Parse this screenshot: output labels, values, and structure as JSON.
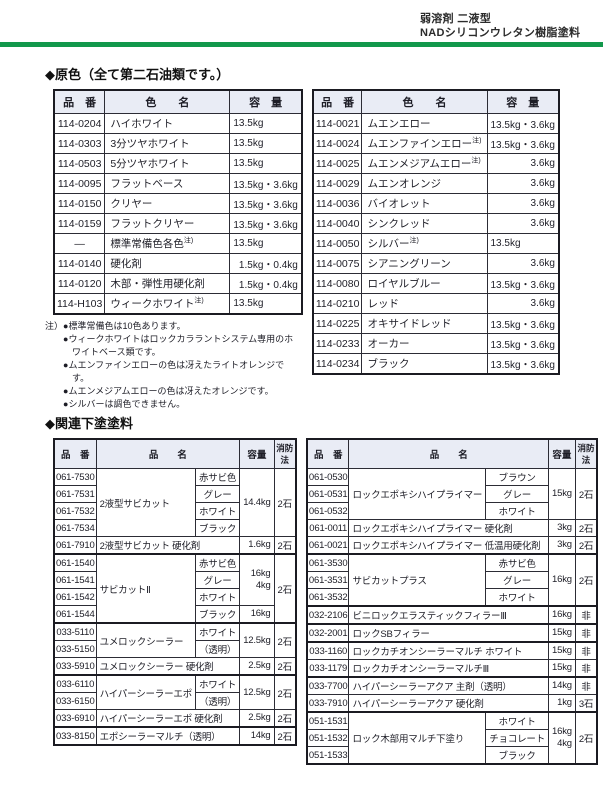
{
  "colors": {
    "accent_green": "#12984b",
    "table_border": "#2c2c35",
    "header_bg": "#e9ecf5"
  },
  "header": {
    "line1": "弱溶剤 二液型",
    "line2": "NADシリコンウレタン樹脂塗料"
  },
  "section1": {
    "title": "◆原色（全て第二石油類です。）",
    "columns": [
      "品　番",
      "色　　名",
      "容　量"
    ],
    "note_mark": "注)",
    "left_rows": [
      {
        "code": "114-0204",
        "name": "ハイホワイト",
        "qty": "13.5kg"
      },
      {
        "code": "114-0303",
        "name": "3分ツヤホワイト",
        "qty": "13.5kg"
      },
      {
        "code": "114-0503",
        "name": "5分ツヤホワイト",
        "qty": "13.5kg"
      },
      {
        "code": "114-0095",
        "name": "フラットベース",
        "qty": "13.5kg・3.6kg"
      },
      {
        "code": "114-0150",
        "name": "クリヤー",
        "qty": "13.5kg・3.6kg"
      },
      {
        "code": "114-0159",
        "name": "フラットクリヤー",
        "qty": "13.5kg・3.6kg"
      },
      {
        "code": "—",
        "name": "標準常備色各色",
        "note": true,
        "qty": "13.5kg"
      },
      {
        "code": "114-0140",
        "name": "硬化剤",
        "qty": "1.5kg・0.4kg"
      },
      {
        "code": "114-0120",
        "name": "木部・弾性用硬化剤",
        "qty": "1.5kg・0.4kg"
      },
      {
        "code": "114-H103",
        "name": "ウィークホワイト",
        "note": true,
        "qty": "13.5kg"
      }
    ],
    "right_rows": [
      {
        "code": "114-0021",
        "name": "ムエンエロー",
        "qty": "13.5kg・3.6kg"
      },
      {
        "code": "114-0024",
        "name": "ムエンファインエロー",
        "note": true,
        "qty": "13.5kg・3.6kg"
      },
      {
        "code": "114-0025",
        "name": "ムエンメジアムエロー",
        "note": true,
        "qty": "3.6kg"
      },
      {
        "code": "114-0029",
        "name": "ムエンオレンジ",
        "qty": "3.6kg"
      },
      {
        "code": "114-0036",
        "name": "バイオレット",
        "qty": "3.6kg"
      },
      {
        "code": "114-0040",
        "name": "シンクレッド",
        "qty": "3.6kg"
      },
      {
        "code": "114-0050",
        "name": "シルバー",
        "note": true,
        "qty": "13.5kg"
      },
      {
        "code": "114-0075",
        "name": "シアニングリーン",
        "qty": "3.6kg"
      },
      {
        "code": "114-0080",
        "name": "ロイヤルブルー",
        "qty": "13.5kg・3.6kg"
      },
      {
        "code": "114-0210",
        "name": "レッド",
        "qty": "3.6kg"
      },
      {
        "code": "114-0225",
        "name": "オキサイドレッド",
        "qty": "13.5kg・3.6kg"
      },
      {
        "code": "114-0233",
        "name": "オーカー",
        "qty": "13.5kg・3.6kg"
      },
      {
        "code": "114-0234",
        "name": "ブラック",
        "qty": "13.5kg・3.6kg"
      }
    ],
    "footnote_label": "注）",
    "bullet": "●",
    "footnotes": [
      "標準常備色は10色あります。",
      "ウィークホワイトはロックカララントシステム専用のホワイトベース類です。",
      "ムエンファインエローの色は冴えたライトオレンジです。",
      "ムエンメジアムエローの色は冴えたオレンジです。",
      "シルバーは調色できません。"
    ]
  },
  "section2": {
    "title": "◆関連下塗塗料",
    "columns": [
      "品　番",
      "品　　名",
      "容量",
      "消防法"
    ],
    "left_families": [
      [
        {
          "name": "2液型サビカット",
          "codes": [
            "061-7530",
            "061-7531",
            "061-7532",
            "061-7534"
          ],
          "variants": [
            "赤サビ色",
            "グレー",
            "ホワイト",
            "ブラック"
          ],
          "qty": [
            {
              "span": 4,
              "lines": [
                "14.4kg"
              ]
            }
          ],
          "fire": [
            {
              "span": 4,
              "text": "2石"
            }
          ]
        },
        {
          "name": "2液型サビカット 硬化剤",
          "codes": [
            "061-7910"
          ],
          "variants": null,
          "qty": [
            {
              "span": 1,
              "lines": [
                "1.6kg"
              ]
            }
          ],
          "fire": [
            {
              "span": 1,
              "text": "2石"
            }
          ]
        }
      ],
      [
        {
          "name": "サビカットⅡ",
          "codes": [
            "061-1540",
            "061-1541",
            "061-1542",
            "061-1544"
          ],
          "variants": [
            "赤サビ色",
            "グレー",
            "ホワイト",
            "ブラック"
          ],
          "qty": [
            {
              "span": 3,
              "lines": [
                "16kg",
                "4kg"
              ]
            },
            {
              "span": 1,
              "lines": [
                "16kg"
              ]
            }
          ],
          "fire": [
            {
              "span": 4,
              "text": "2石"
            }
          ]
        }
      ],
      [
        {
          "name": "ユメロックシーラー",
          "codes": [
            "033-5110",
            "033-5150"
          ],
          "variants": [
            "ホワイト",
            "（透明）"
          ],
          "qty": [
            {
              "span": 2,
              "lines": [
                "12.5kg"
              ]
            }
          ],
          "fire": [
            {
              "span": 2,
              "text": "2石"
            }
          ]
        },
        {
          "name": "ユメロックシーラー 硬化剤",
          "codes": [
            "033-5910"
          ],
          "variants": null,
          "qty": [
            {
              "span": 1,
              "lines": [
                "2.5kg"
              ]
            }
          ],
          "fire": [
            {
              "span": 1,
              "text": "2石"
            }
          ]
        }
      ],
      [
        {
          "name": "ハイパーシーラーエポ",
          "codes": [
            "033-6110",
            "033-6150"
          ],
          "variants": [
            "ホワイト",
            "（透明）"
          ],
          "qty": [
            {
              "span": 2,
              "lines": [
                "12.5kg"
              ]
            }
          ],
          "fire": [
            {
              "span": 2,
              "text": "2石"
            }
          ]
        },
        {
          "name": "ハイパーシーラーエポ 硬化剤",
          "codes": [
            "033-6910"
          ],
          "variants": null,
          "qty": [
            {
              "span": 1,
              "lines": [
                "2.5kg"
              ]
            }
          ],
          "fire": [
            {
              "span": 1,
              "text": "2石"
            }
          ]
        }
      ],
      [
        {
          "name": "エポシーラーマルチ（透明）",
          "codes": [
            "033-8150"
          ],
          "variants": null,
          "qty": [
            {
              "span": 1,
              "lines": [
                "14kg"
              ]
            }
          ],
          "fire": [
            {
              "span": 1,
              "text": "2石"
            }
          ]
        }
      ]
    ],
    "right_families": [
      [
        {
          "name": "ロックエポキシハイプライマー",
          "codes": [
            "061-0530",
            "061-0531",
            "061-0532"
          ],
          "variants": [
            "ブラウン",
            "グレー",
            "ホワイト"
          ],
          "qty": [
            {
              "span": 3,
              "lines": [
                "15kg"
              ]
            }
          ],
          "fire": [
            {
              "span": 3,
              "text": "2石"
            }
          ]
        },
        {
          "name": "ロックエポキシハイプライマー 硬化剤",
          "codes": [
            "061-0011"
          ],
          "variants": null,
          "qty": [
            {
              "span": 1,
              "lines": [
                "3kg"
              ]
            }
          ],
          "fire": [
            {
              "span": 1,
              "text": "2石"
            }
          ]
        },
        {
          "name": "ロックエポキシハイプライマー 低温用硬化剤",
          "codes": [
            "061-0021"
          ],
          "variants": null,
          "qty": [
            {
              "span": 1,
              "lines": [
                "3kg"
              ]
            }
          ],
          "fire": [
            {
              "span": 1,
              "text": "2石"
            }
          ]
        }
      ],
      [
        {
          "name": "サビカットプラス",
          "codes": [
            "061-3530",
            "061-3531",
            "061-3532"
          ],
          "variants": [
            "赤サビ色",
            "グレー",
            "ホワイト"
          ],
          "qty": [
            {
              "span": 3,
              "lines": [
                "16kg"
              ]
            }
          ],
          "fire": [
            {
              "span": 3,
              "text": "2石"
            }
          ]
        }
      ],
      [
        {
          "name": "ビニロックエラスティックフィラーⅢ",
          "codes": [
            "032-2106"
          ],
          "variants": null,
          "qty": [
            {
              "span": 1,
              "lines": [
                "16kg"
              ]
            }
          ],
          "fire": [
            {
              "span": 1,
              "text": "非"
            }
          ]
        }
      ],
      [
        {
          "name": "ロックSBフィラー",
          "codes": [
            "032-2001"
          ],
          "variants": null,
          "qty": [
            {
              "span": 1,
              "lines": [
                "15kg"
              ]
            }
          ],
          "fire": [
            {
              "span": 1,
              "text": "非"
            }
          ]
        }
      ],
      [
        {
          "name": "ロックカチオンシーラーマルチ ホワイト",
          "codes": [
            "033-1160"
          ],
          "variants": null,
          "qty": [
            {
              "span": 1,
              "lines": [
                "15kg"
              ]
            }
          ],
          "fire": [
            {
              "span": 1,
              "text": "非"
            }
          ]
        },
        {
          "name": "ロックカチオンシーラーマルチⅢ",
          "codes": [
            "033-1179"
          ],
          "variants": null,
          "qty": [
            {
              "span": 1,
              "lines": [
                "15kg"
              ]
            }
          ],
          "fire": [
            {
              "span": 1,
              "text": "非"
            }
          ]
        }
      ],
      [
        {
          "name": "ハイパーシーラーアクア 主剤（透明）",
          "codes": [
            "033-7700"
          ],
          "variants": null,
          "qty": [
            {
              "span": 1,
              "lines": [
                "14kg"
              ]
            }
          ],
          "fire": [
            {
              "span": 1,
              "text": "非"
            }
          ]
        },
        {
          "name": "ハイパーシーラーアクア 硬化剤",
          "codes": [
            "033-7910"
          ],
          "variants": null,
          "qty": [
            {
              "span": 1,
              "lines": [
                "1kg"
              ]
            }
          ],
          "fire": [
            {
              "span": 1,
              "text": "3石"
            }
          ]
        }
      ],
      [
        {
          "name": "ロック木部用マルチ下塗り",
          "codes": [
            "051-1531",
            "051-1532",
            "051-1533"
          ],
          "variants": [
            "ホワイト",
            "チョコレート",
            "ブラック"
          ],
          "qty": [
            {
              "span": 3,
              "lines": [
                "16kg",
                "4kg"
              ]
            }
          ],
          "fire": [
            {
              "span": 3,
              "text": "2石"
            }
          ]
        }
      ]
    ]
  }
}
